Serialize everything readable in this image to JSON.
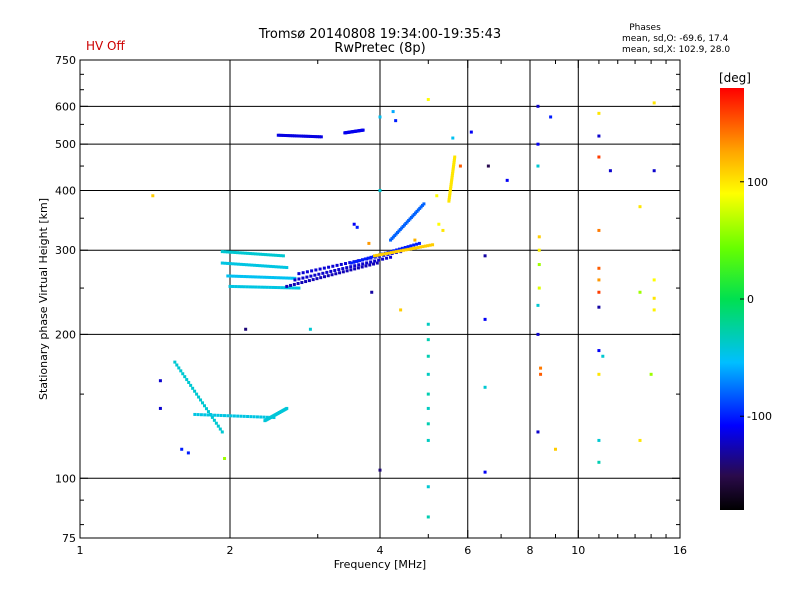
{
  "header": {
    "title_line1": "Tromsø 20140808 19:34:00-19:35:43",
    "title_line2": "RwPretec (8p)",
    "status": "HV Off",
    "phases_label": "Phases",
    "phases_o": "mean, sd,O: -69.6, 17.4",
    "phases_x": "mean, sd,X: 102.9, 28.0"
  },
  "colorbar": {
    "unit": "[deg]",
    "ticks": [
      "100",
      "0",
      "-100"
    ],
    "tick_values": [
      100,
      0,
      -100
    ],
    "range": [
      -180,
      180
    ]
  },
  "chart_data": {
    "type": "scatter",
    "xlabel": "Frequency [MHz]",
    "ylabel": "Stationary phase Virtual Height [km]",
    "xscale": "log2",
    "yscale": "log",
    "xlim": [
      1,
      16
    ],
    "ylim": [
      75,
      750
    ],
    "xticks": [
      "1",
      "2",
      "4",
      "6",
      "8",
      "10",
      "16"
    ],
    "xtick_values": [
      1,
      2,
      4,
      6,
      8,
      10,
      16
    ],
    "xgrid": [
      2,
      4,
      6,
      8,
      10
    ],
    "xminor": [
      3,
      5,
      7,
      9,
      11,
      12,
      13,
      14,
      15
    ],
    "yticks": [
      "75",
      "100",
      "200",
      "300",
      "400",
      "500",
      "600",
      "750"
    ],
    "ytick_values": [
      75,
      100,
      200,
      300,
      400,
      500,
      600,
      750
    ],
    "ygrid": [
      100,
      200,
      300,
      400,
      500,
      600
    ],
    "yminor": [
      80,
      90,
      150,
      250,
      350,
      450,
      550,
      650,
      700
    ],
    "grid": true,
    "traces": [
      {
        "f0": 1.93,
        "f1": 2.56,
        "h0": 298,
        "h1": 292,
        "phase": -40
      },
      {
        "f0": 1.93,
        "f1": 2.6,
        "h0": 282,
        "h1": 276,
        "phase": -45
      },
      {
        "f0": 1.98,
        "f1": 2.7,
        "h0": 265,
        "h1": 262,
        "phase": -50
      },
      {
        "f0": 2.0,
        "f1": 2.75,
        "h0": 252,
        "h1": 250,
        "phase": -45
      },
      {
        "f0": 2.6,
        "f1": 3.95,
        "h0": 252,
        "h1": 282,
        "phase": -125
      },
      {
        "f0": 2.7,
        "f1": 4.2,
        "h0": 260,
        "h1": 290,
        "phase": -120
      },
      {
        "f0": 2.75,
        "f1": 4.4,
        "h0": 268,
        "h1": 298,
        "phase": -118
      },
      {
        "f0": 3.5,
        "f1": 4.8,
        "h0": 282,
        "h1": 310,
        "phase": -100
      },
      {
        "f0": 3.9,
        "f1": 5.1,
        "h0": 292,
        "h1": 308,
        "phase": 110
      },
      {
        "f0": 4.2,
        "f1": 4.9,
        "h0": 315,
        "h1": 375,
        "phase": -80
      },
      {
        "f0": 1.55,
        "f1": 1.93,
        "h0": 175,
        "h1": 125,
        "phase": -40
      },
      {
        "f0": 1.7,
        "f1": 2.45,
        "h0": 136,
        "h1": 134,
        "phase": -45
      },
      {
        "f0": 2.35,
        "f1": 2.6,
        "h0": 132,
        "h1": 140,
        "phase": -42
      },
      {
        "f0": 2.5,
        "f1": 3.05,
        "h0": 522,
        "h1": 518,
        "phase": -115
      },
      {
        "f0": 3.4,
        "f1": 3.7,
        "h0": 528,
        "h1": 535,
        "phase": -112
      },
      {
        "f0": 5.5,
        "f1": 5.65,
        "h0": 380,
        "h1": 470,
        "phase": 100
      }
    ],
    "points": [
      {
        "f": 5.0,
        "h": 210,
        "phase": -35
      },
      {
        "f": 5.0,
        "h": 195,
        "phase": -30
      },
      {
        "f": 5.0,
        "h": 180,
        "phase": -30
      },
      {
        "f": 5.0,
        "h": 165,
        "phase": -35
      },
      {
        "f": 5.0,
        "h": 150,
        "phase": -30
      },
      {
        "f": 5.0,
        "h": 140,
        "phase": -35
      },
      {
        "f": 5.0,
        "h": 130,
        "phase": -30
      },
      {
        "f": 5.0,
        "h": 120,
        "phase": -35
      },
      {
        "f": 5.0,
        "h": 96,
        "phase": -40
      },
      {
        "f": 5.0,
        "h": 83,
        "phase": -30
      },
      {
        "f": 5.0,
        "h": 620,
        "phase": 90
      },
      {
        "f": 6.5,
        "h": 292,
        "phase": -130
      },
      {
        "f": 6.5,
        "h": 215,
        "phase": -110
      },
      {
        "f": 6.5,
        "h": 155,
        "phase": -40
      },
      {
        "f": 6.5,
        "h": 103,
        "phase": -110
      },
      {
        "f": 6.6,
        "h": 450,
        "phase": -150
      },
      {
        "f": 7.2,
        "h": 420,
        "phase": -110
      },
      {
        "f": 8.3,
        "h": 600,
        "phase": -120
      },
      {
        "f": 8.3,
        "h": 500,
        "phase": -110
      },
      {
        "f": 8.3,
        "h": 450,
        "phase": -40
      },
      {
        "f": 8.35,
        "h": 320,
        "phase": 110
      },
      {
        "f": 8.35,
        "h": 300,
        "phase": 95
      },
      {
        "f": 8.35,
        "h": 280,
        "phase": 60
      },
      {
        "f": 8.35,
        "h": 250,
        "phase": 80
      },
      {
        "f": 8.3,
        "h": 230,
        "phase": -40
      },
      {
        "f": 8.3,
        "h": 200,
        "phase": -120
      },
      {
        "f": 8.4,
        "h": 170,
        "phase": 140
      },
      {
        "f": 8.4,
        "h": 165,
        "phase": 150
      },
      {
        "f": 8.3,
        "h": 125,
        "phase": -120
      },
      {
        "f": 8.8,
        "h": 570,
        "phase": -100
      },
      {
        "f": 9.0,
        "h": 115,
        "phase": 110
      },
      {
        "f": 11.0,
        "h": 580,
        "phase": 100
      },
      {
        "f": 11.0,
        "h": 520,
        "phase": -120
      },
      {
        "f": 11.0,
        "h": 470,
        "phase": 160
      },
      {
        "f": 11.0,
        "h": 330,
        "phase": 140
      },
      {
        "f": 11.0,
        "h": 275,
        "phase": 150
      },
      {
        "f": 11.0,
        "h": 260,
        "phase": 130
      },
      {
        "f": 11.0,
        "h": 245,
        "phase": 160
      },
      {
        "f": 11.0,
        "h": 228,
        "phase": -130
      },
      {
        "f": 11.0,
        "h": 185,
        "phase": -110
      },
      {
        "f": 11.2,
        "h": 180,
        "phase": -40
      },
      {
        "f": 11.0,
        "h": 165,
        "phase": 100
      },
      {
        "f": 11.0,
        "h": 120,
        "phase": -40
      },
      {
        "f": 11.0,
        "h": 108,
        "phase": -30
      },
      {
        "f": 11.6,
        "h": 440,
        "phase": -120
      },
      {
        "f": 13.3,
        "h": 370,
        "phase": 100
      },
      {
        "f": 13.3,
        "h": 245,
        "phase": 60
      },
      {
        "f": 13.3,
        "h": 120,
        "phase": 100
      },
      {
        "f": 14.2,
        "h": 610,
        "phase": 100
      },
      {
        "f": 14.2,
        "h": 440,
        "phase": -120
      },
      {
        "f": 14.2,
        "h": 260,
        "phase": 90
      },
      {
        "f": 14.2,
        "h": 238,
        "phase": 100
      },
      {
        "f": 14.2,
        "h": 225,
        "phase": 95
      },
      {
        "f": 14.0,
        "h": 165,
        "phase": 60
      },
      {
        "f": 1.4,
        "h": 390,
        "phase": 110
      },
      {
        "f": 1.45,
        "h": 160,
        "phase": -120
      },
      {
        "f": 1.45,
        "h": 140,
        "phase": -120
      },
      {
        "f": 1.6,
        "h": 115,
        "phase": -100
      },
      {
        "f": 1.65,
        "h": 113,
        "phase": -100
      },
      {
        "f": 1.95,
        "h": 110,
        "phase": 60
      },
      {
        "f": 2.15,
        "h": 205,
        "phase": -140
      },
      {
        "f": 2.9,
        "h": 205,
        "phase": -40
      },
      {
        "f": 4.25,
        "h": 585,
        "phase": -60
      },
      {
        "f": 4.0,
        "h": 570,
        "phase": -50
      },
      {
        "f": 4.3,
        "h": 560,
        "phase": -100
      },
      {
        "f": 4.0,
        "h": 400,
        "phase": -40
      },
      {
        "f": 4.4,
        "h": 225,
        "phase": 110
      },
      {
        "f": 4.0,
        "h": 104,
        "phase": -140
      },
      {
        "f": 3.85,
        "h": 245,
        "phase": -130
      },
      {
        "f": 5.6,
        "h": 515,
        "phase": -50
      },
      {
        "f": 5.8,
        "h": 450,
        "phase": 150
      },
      {
        "f": 5.2,
        "h": 390,
        "phase": 90
      },
      {
        "f": 5.25,
        "h": 340,
        "phase": 90
      },
      {
        "f": 5.35,
        "h": 330,
        "phase": 100
      },
      {
        "f": 3.8,
        "h": 310,
        "phase": 130
      },
      {
        "f": 4.7,
        "h": 315,
        "phase": 120
      },
      {
        "f": 3.55,
        "h": 340,
        "phase": -110
      },
      {
        "f": 3.6,
        "h": 335,
        "phase": -100
      },
      {
        "f": 6.1,
        "h": 530,
        "phase": -110
      }
    ]
  }
}
